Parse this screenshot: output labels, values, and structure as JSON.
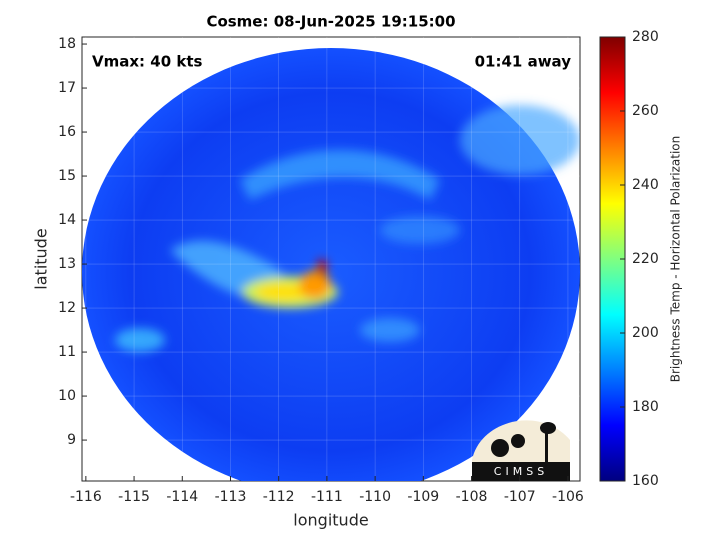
{
  "chart_data": {
    "type": "image",
    "title": "Cosme: 08-Jun-2025 19:15:00",
    "annotations": [
      "Vmax: 40 kts",
      "01:41 away"
    ],
    "xlabel": "longitude",
    "ylabel": "latitude",
    "xlim": [
      -116.08,
      -105.75
    ],
    "xticks": [
      -116,
      -115,
      -114,
      -113,
      -112,
      -111,
      -110,
      -109,
      -108,
      -107,
      -106
    ],
    "ylim": [
      8.07,
      18.16
    ],
    "yticks": [
      9,
      10,
      11,
      12,
      13,
      14,
      15,
      16,
      17,
      18
    ],
    "grid": true,
    "colorbar": {
      "label": "Brightness Temp - Horizontal Polarization",
      "lim": [
        160,
        280
      ],
      "ticks": [
        160,
        180,
        200,
        220,
        240,
        260,
        280
      ],
      "colormap": "jet"
    },
    "logo": "CIMSS"
  }
}
